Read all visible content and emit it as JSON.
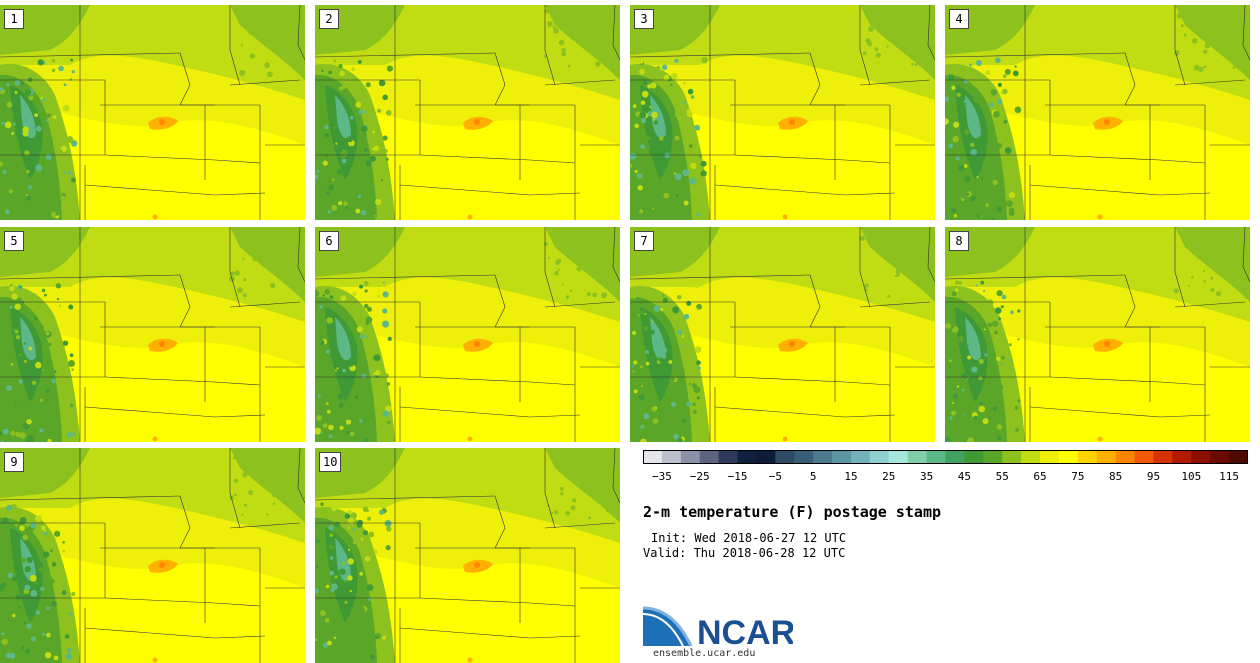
{
  "chart_data": {
    "type": "heatmap",
    "title": "2-m temperature (F) postage stamp",
    "init": "Init: Wed 2018-06-27 12 UTC",
    "valid": "Valid: Thu 2018-06-28 12 UTC",
    "units": "F",
    "members": [
      "1",
      "2",
      "3",
      "4",
      "5",
      "6",
      "7",
      "8",
      "9",
      "10"
    ],
    "colorbar": {
      "ticks": [
        "−35",
        "−25",
        "−15",
        "−5",
        "5",
        "15",
        "25",
        "35",
        "45",
        "55",
        "65",
        "75",
        "85",
        "95",
        "105",
        "115"
      ],
      "range": [
        -40,
        120
      ],
      "step": 5,
      "colors": [
        "#e4e6ec",
        "#bcc0cc",
        "#8c92a6",
        "#5c6580",
        "#2d3a5c",
        "#11203f",
        "#0d1b36",
        "#2f4a62",
        "#3a5d77",
        "#4b7a8c",
        "#5d95a3",
        "#73b2bb",
        "#8fd0ce",
        "#a6e6dc",
        "#7fd0a6",
        "#5cb887",
        "#43a262",
        "#3f9a36",
        "#5aa628",
        "#8cc11e",
        "#c0dc12",
        "#eef00a",
        "#ffff00",
        "#ffd200",
        "#ffb000",
        "#ff8400",
        "#f25a00",
        "#d43200",
        "#b01a00",
        "#8c1000",
        "#6a0c00",
        "#4e0a00"
      ]
    }
  },
  "branding": {
    "logo_text": "NCAR",
    "url": "ensemble.ucar.edu"
  }
}
